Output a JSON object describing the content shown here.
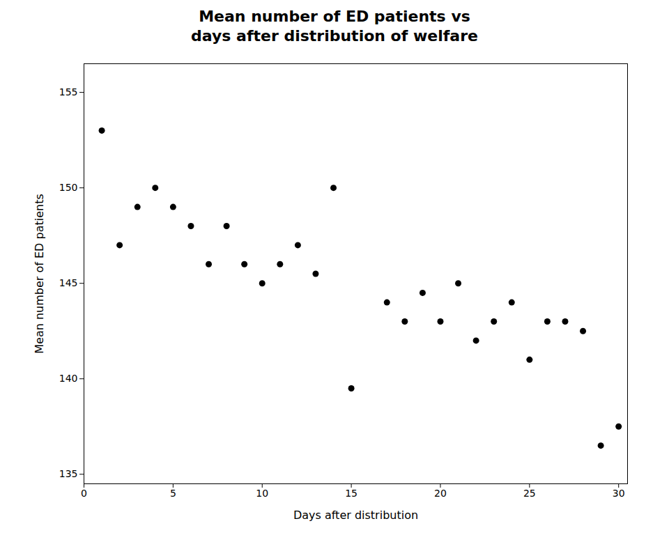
{
  "chart_data": {
    "type": "scatter",
    "title": "Mean number of ED patients vs\ndays after distribution of welfare",
    "xlabel": "Days after distribution",
    "ylabel": "Mean number of ED patients",
    "x": [
      1,
      2,
      3,
      4,
      5,
      6,
      7,
      8,
      9,
      10,
      11,
      12,
      13,
      14,
      15,
      17,
      18,
      19,
      20,
      21,
      22,
      23,
      24,
      25,
      26,
      27,
      28,
      29,
      30
    ],
    "values": [
      153,
      147,
      149,
      150,
      149,
      148,
      146,
      148,
      146,
      145,
      146,
      147,
      145.5,
      150,
      139.5,
      144,
      143,
      144.5,
      143,
      145,
      142,
      143,
      144,
      141,
      143,
      143,
      142.5,
      136.5,
      137.5
    ],
    "color": "#000000",
    "xlim": [
      0,
      30.5
    ],
    "ylim": [
      134.5,
      156.5
    ],
    "xticks": [
      0,
      5,
      10,
      15,
      20,
      25,
      30
    ],
    "yticks": [
      135,
      140,
      145,
      150,
      155
    ],
    "grid": false
  }
}
